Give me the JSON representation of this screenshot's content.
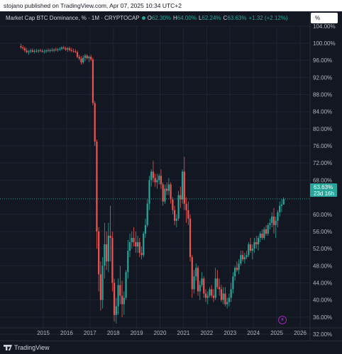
{
  "publisher": "stojano published on TradingView.com, Apr 07, 2025 10:34 UTC+2",
  "symbol": "Market Cap BTC Dominance, % · 1M · CRYPTOCAP",
  "ohlc": {
    "o_label": "O",
    "o": "62.30%",
    "h_label": "H",
    "h": "64.00%",
    "l_label": "L",
    "l": "62.24%",
    "c_label": "C",
    "c": "63.63%",
    "chg": "+1.32 (+2.12%)"
  },
  "scale_button": "%",
  "price_tag": {
    "value": "63.63%",
    "countdown": "23d 16h"
  },
  "footer_logo": "TradingView",
  "colors": {
    "background": "#131722",
    "up": "#26a69a",
    "down": "#ef5350",
    "grid": "#1f2433"
  },
  "icons": {
    "flash": "lightning-icon",
    "logo": "tradingview-logo-icon"
  },
  "chart_data": {
    "type": "candlestick",
    "title": "Market Cap BTC Dominance, %",
    "interval": "1M",
    "ylabel": "",
    "xlabel": "",
    "ylim": [
      30,
      105
    ],
    "y_ticks": [
      "104.00%",
      "100.00%",
      "96.00%",
      "92.00%",
      "88.00%",
      "84.00%",
      "80.00%",
      "76.00%",
      "72.00%",
      "68.00%",
      "60.00%",
      "56.00%",
      "52.00%",
      "48.00%",
      "44.00%",
      "40.00%",
      "36.00%",
      "32.00%"
    ],
    "x_ticks": [
      "2015",
      "2016",
      "2017",
      "2018",
      "2019",
      "2020",
      "2021",
      "2022",
      "2023",
      "2024",
      "2025",
      "2026"
    ],
    "xlim": [
      2014.0,
      2026.6
    ],
    "last_price": 63.63,
    "grid": true,
    "candles": [
      {
        "t": "2014-01",
        "o": 99.3,
        "h": 99.9,
        "l": 98.7,
        "c": 99.0
      },
      {
        "t": "2014-02",
        "o": 99.0,
        "h": 99.5,
        "l": 98.4,
        "c": 98.8
      },
      {
        "t": "2014-03",
        "o": 98.8,
        "h": 99.2,
        "l": 97.9,
        "c": 98.3
      },
      {
        "t": "2014-04",
        "o": 98.3,
        "h": 98.9,
        "l": 97.6,
        "c": 97.9
      },
      {
        "t": "2014-05",
        "o": 97.9,
        "h": 98.4,
        "l": 97.3,
        "c": 98.1
      },
      {
        "t": "2014-06",
        "o": 98.1,
        "h": 98.7,
        "l": 97.7,
        "c": 98.3
      },
      {
        "t": "2014-07",
        "o": 98.3,
        "h": 98.8,
        "l": 97.8,
        "c": 98.0
      },
      {
        "t": "2014-08",
        "o": 98.0,
        "h": 98.6,
        "l": 97.6,
        "c": 98.2
      },
      {
        "t": "2014-09",
        "o": 98.2,
        "h": 98.7,
        "l": 97.8,
        "c": 98.1
      },
      {
        "t": "2014-10",
        "o": 98.1,
        "h": 98.6,
        "l": 97.7,
        "c": 98.3
      },
      {
        "t": "2014-11",
        "o": 98.3,
        "h": 98.7,
        "l": 97.9,
        "c": 98.2
      },
      {
        "t": "2014-12",
        "o": 98.2,
        "h": 98.6,
        "l": 97.8,
        "c": 98.0
      },
      {
        "t": "2015-01",
        "o": 98.0,
        "h": 98.5,
        "l": 97.6,
        "c": 98.1
      },
      {
        "t": "2015-02",
        "o": 98.1,
        "h": 98.6,
        "l": 97.7,
        "c": 98.3
      },
      {
        "t": "2015-03",
        "o": 98.3,
        "h": 98.8,
        "l": 97.9,
        "c": 98.2
      },
      {
        "t": "2015-04",
        "o": 98.2,
        "h": 98.7,
        "l": 97.8,
        "c": 98.4
      },
      {
        "t": "2015-05",
        "o": 98.4,
        "h": 98.9,
        "l": 98.0,
        "c": 98.3
      },
      {
        "t": "2015-06",
        "o": 98.3,
        "h": 98.8,
        "l": 97.9,
        "c": 98.5
      },
      {
        "t": "2015-07",
        "o": 98.5,
        "h": 99.0,
        "l": 98.1,
        "c": 98.4
      },
      {
        "t": "2015-08",
        "o": 98.4,
        "h": 98.9,
        "l": 98.0,
        "c": 98.6
      },
      {
        "t": "2015-09",
        "o": 98.6,
        "h": 99.1,
        "l": 98.2,
        "c": 98.7
      },
      {
        "t": "2015-10",
        "o": 98.7,
        "h": 99.3,
        "l": 98.3,
        "c": 99.0
      },
      {
        "t": "2015-11",
        "o": 99.0,
        "h": 99.4,
        "l": 98.5,
        "c": 98.8
      },
      {
        "t": "2015-12",
        "o": 98.8,
        "h": 99.2,
        "l": 98.2,
        "c": 98.5
      },
      {
        "t": "2016-01",
        "o": 98.5,
        "h": 99.1,
        "l": 98.0,
        "c": 98.8
      },
      {
        "t": "2016-02",
        "o": 98.8,
        "h": 99.2,
        "l": 98.1,
        "c": 98.4
      },
      {
        "t": "2016-03",
        "o": 98.4,
        "h": 98.9,
        "l": 97.9,
        "c": 98.2
      },
      {
        "t": "2016-04",
        "o": 98.2,
        "h": 98.7,
        "l": 97.8,
        "c": 98.1
      },
      {
        "t": "2016-05",
        "o": 98.1,
        "h": 98.6,
        "l": 97.7,
        "c": 97.9
      },
      {
        "t": "2016-06",
        "o": 97.9,
        "h": 98.3,
        "l": 96.5,
        "c": 96.8
      },
      {
        "t": "2016-07",
        "o": 96.8,
        "h": 97.3,
        "l": 96.0,
        "c": 96.4
      },
      {
        "t": "2016-08",
        "o": 96.4,
        "h": 97.0,
        "l": 95.0,
        "c": 95.5
      },
      {
        "t": "2016-09",
        "o": 95.5,
        "h": 97.2,
        "l": 95.1,
        "c": 96.6
      },
      {
        "t": "2016-10",
        "o": 96.6,
        "h": 97.5,
        "l": 95.8,
        "c": 97.1
      },
      {
        "t": "2016-11",
        "o": 97.1,
        "h": 97.4,
        "l": 96.2,
        "c": 96.5
      },
      {
        "t": "2016-12",
        "o": 96.5,
        "h": 97.1,
        "l": 95.6,
        "c": 96.8
      },
      {
        "t": "2017-01",
        "o": 96.8,
        "h": 97.3,
        "l": 95.8,
        "c": 96.2
      },
      {
        "t": "2017-02",
        "o": 96.2,
        "h": 96.6,
        "l": 85.5,
        "c": 86.0
      },
      {
        "t": "2017-03",
        "o": 86.0,
        "h": 86.5,
        "l": 76.0,
        "c": 77.0
      },
      {
        "t": "2017-04",
        "o": 77.0,
        "h": 77.5,
        "l": 52.0,
        "c": 56.0
      },
      {
        "t": "2017-05",
        "o": 56.0,
        "h": 57.0,
        "l": 42.0,
        "c": 46.0
      },
      {
        "t": "2017-06",
        "o": 46.0,
        "h": 49.0,
        "l": 37.5,
        "c": 40.0
      },
      {
        "t": "2017-07",
        "o": 40.0,
        "h": 50.0,
        "l": 38.0,
        "c": 48.0
      },
      {
        "t": "2017-08",
        "o": 48.0,
        "h": 58.0,
        "l": 45.0,
        "c": 53.0
      },
      {
        "t": "2017-09",
        "o": 53.0,
        "h": 56.0,
        "l": 47.0,
        "c": 49.0
      },
      {
        "t": "2017-10",
        "o": 49.0,
        "h": 58.0,
        "l": 46.5,
        "c": 55.0
      },
      {
        "t": "2017-11",
        "o": 55.0,
        "h": 62.0,
        "l": 49.0,
        "c": 54.5
      },
      {
        "t": "2017-12",
        "o": 54.5,
        "h": 56.0,
        "l": 42.0,
        "c": 44.0
      },
      {
        "t": "2018-01",
        "o": 44.0,
        "h": 45.0,
        "l": 35.0,
        "c": 36.5
      },
      {
        "t": "2018-02",
        "o": 36.5,
        "h": 40.5,
        "l": 34.5,
        "c": 38.5
      },
      {
        "t": "2018-03",
        "o": 38.5,
        "h": 45.0,
        "l": 36.5,
        "c": 43.5
      },
      {
        "t": "2018-04",
        "o": 43.5,
        "h": 48.0,
        "l": 39.0,
        "c": 41.0
      },
      {
        "t": "2018-05",
        "o": 41.0,
        "h": 44.5,
        "l": 36.0,
        "c": 39.0
      },
      {
        "t": "2018-06",
        "o": 39.0,
        "h": 42.0,
        "l": 36.5,
        "c": 40.5
      },
      {
        "t": "2018-07",
        "o": 40.5,
        "h": 47.0,
        "l": 40.0,
        "c": 46.5
      },
      {
        "t": "2018-08",
        "o": 46.5,
        "h": 54.0,
        "l": 45.0,
        "c": 51.5
      },
      {
        "t": "2018-09",
        "o": 51.5,
        "h": 55.5,
        "l": 50.0,
        "c": 53.5
      },
      {
        "t": "2018-10",
        "o": 53.5,
        "h": 56.0,
        "l": 52.0,
        "c": 54.5
      },
      {
        "t": "2018-11",
        "o": 54.5,
        "h": 57.0,
        "l": 52.5,
        "c": 53.5
      },
      {
        "t": "2018-12",
        "o": 53.5,
        "h": 56.0,
        "l": 51.0,
        "c": 52.5
      },
      {
        "t": "2019-01",
        "o": 52.5,
        "h": 55.0,
        "l": 51.0,
        "c": 53.5
      },
      {
        "t": "2019-02",
        "o": 53.5,
        "h": 54.5,
        "l": 50.0,
        "c": 51.0
      },
      {
        "t": "2019-03",
        "o": 51.0,
        "h": 52.5,
        "l": 49.5,
        "c": 50.5
      },
      {
        "t": "2019-04",
        "o": 50.5,
        "h": 56.0,
        "l": 50.0,
        "c": 55.5
      },
      {
        "t": "2019-05",
        "o": 55.5,
        "h": 59.0,
        "l": 54.5,
        "c": 57.5
      },
      {
        "t": "2019-06",
        "o": 57.5,
        "h": 63.5,
        "l": 57.0,
        "c": 62.5
      },
      {
        "t": "2019-07",
        "o": 62.5,
        "h": 69.0,
        "l": 61.0,
        "c": 68.0
      },
      {
        "t": "2019-08",
        "o": 68.0,
        "h": 70.5,
        "l": 66.5,
        "c": 70.0
      },
      {
        "t": "2019-09",
        "o": 70.0,
        "h": 72.5,
        "l": 67.5,
        "c": 68.5
      },
      {
        "t": "2019-10",
        "o": 68.5,
        "h": 69.5,
        "l": 66.5,
        "c": 67.5
      },
      {
        "t": "2019-11",
        "o": 67.5,
        "h": 69.5,
        "l": 66.0,
        "c": 68.0
      },
      {
        "t": "2019-12",
        "o": 68.0,
        "h": 69.5,
        "l": 67.0,
        "c": 69.0
      },
      {
        "t": "2020-01",
        "o": 69.0,
        "h": 70.5,
        "l": 66.0,
        "c": 67.0
      },
      {
        "t": "2020-02",
        "o": 67.0,
        "h": 67.5,
        "l": 62.0,
        "c": 63.0
      },
      {
        "t": "2020-03",
        "o": 63.0,
        "h": 67.0,
        "l": 62.5,
        "c": 66.0
      },
      {
        "t": "2020-04",
        "o": 66.0,
        "h": 67.5,
        "l": 64.5,
        "c": 65.5
      },
      {
        "t": "2020-05",
        "o": 65.5,
        "h": 68.5,
        "l": 64.5,
        "c": 67.0
      },
      {
        "t": "2020-06",
        "o": 67.0,
        "h": 67.5,
        "l": 62.5,
        "c": 63.5
      },
      {
        "t": "2020-07",
        "o": 63.5,
        "h": 64.0,
        "l": 60.0,
        "c": 61.0
      },
      {
        "t": "2020-08",
        "o": 61.0,
        "h": 62.0,
        "l": 57.5,
        "c": 58.5
      },
      {
        "t": "2020-09",
        "o": 58.5,
        "h": 60.0,
        "l": 57.0,
        "c": 59.0
      },
      {
        "t": "2020-10",
        "o": 59.0,
        "h": 65.5,
        "l": 58.5,
        "c": 64.5
      },
      {
        "t": "2020-11",
        "o": 64.5,
        "h": 66.5,
        "l": 61.5,
        "c": 63.5
      },
      {
        "t": "2020-12",
        "o": 63.5,
        "h": 70.5,
        "l": 62.5,
        "c": 70.0
      },
      {
        "t": "2021-01",
        "o": 70.0,
        "h": 73.5,
        "l": 61.0,
        "c": 62.5
      },
      {
        "t": "2021-02",
        "o": 62.5,
        "h": 64.0,
        "l": 58.0,
        "c": 61.0
      },
      {
        "t": "2021-03",
        "o": 61.0,
        "h": 63.0,
        "l": 57.5,
        "c": 59.0
      },
      {
        "t": "2021-04",
        "o": 59.0,
        "h": 60.0,
        "l": 49.0,
        "c": 50.0
      },
      {
        "t": "2021-05",
        "o": 50.0,
        "h": 50.5,
        "l": 40.5,
        "c": 42.5
      },
      {
        "t": "2021-06",
        "o": 42.5,
        "h": 47.0,
        "l": 41.5,
        "c": 45.5
      },
      {
        "t": "2021-07",
        "o": 45.5,
        "h": 48.5,
        "l": 44.5,
        "c": 47.5
      },
      {
        "t": "2021-08",
        "o": 47.5,
        "h": 48.0,
        "l": 41.0,
        "c": 42.0
      },
      {
        "t": "2021-09",
        "o": 42.0,
        "h": 44.5,
        "l": 40.0,
        "c": 43.5
      },
      {
        "t": "2021-10",
        "o": 43.5,
        "h": 46.5,
        "l": 43.0,
        "c": 45.0
      },
      {
        "t": "2021-11",
        "o": 45.0,
        "h": 45.5,
        "l": 40.5,
        "c": 41.5
      },
      {
        "t": "2021-12",
        "o": 41.5,
        "h": 42.5,
        "l": 39.5,
        "c": 40.5
      },
      {
        "t": "2022-01",
        "o": 40.5,
        "h": 42.0,
        "l": 39.0,
        "c": 41.0
      },
      {
        "t": "2022-02",
        "o": 41.0,
        "h": 43.0,
        "l": 40.5,
        "c": 42.5
      },
      {
        "t": "2022-03",
        "o": 42.5,
        "h": 43.5,
        "l": 40.5,
        "c": 41.0
      },
      {
        "t": "2022-04",
        "o": 41.0,
        "h": 42.5,
        "l": 39.5,
        "c": 40.5
      },
      {
        "t": "2022-05",
        "o": 40.5,
        "h": 47.5,
        "l": 40.0,
        "c": 45.0
      },
      {
        "t": "2022-06",
        "o": 45.0,
        "h": 47.0,
        "l": 42.5,
        "c": 43.0
      },
      {
        "t": "2022-07",
        "o": 43.0,
        "h": 45.0,
        "l": 41.0,
        "c": 42.5
      },
      {
        "t": "2022-08",
        "o": 42.5,
        "h": 43.5,
        "l": 39.5,
        "c": 40.0
      },
      {
        "t": "2022-09",
        "o": 40.0,
        "h": 43.0,
        "l": 39.0,
        "c": 41.5
      },
      {
        "t": "2022-10",
        "o": 41.5,
        "h": 43.0,
        "l": 38.5,
        "c": 39.0
      },
      {
        "t": "2022-11",
        "o": 39.0,
        "h": 40.5,
        "l": 38.0,
        "c": 39.5
      },
      {
        "t": "2022-12",
        "o": 39.5,
        "h": 41.5,
        "l": 38.5,
        "c": 40.5
      },
      {
        "t": "2023-01",
        "o": 40.5,
        "h": 44.0,
        "l": 39.5,
        "c": 42.5
      },
      {
        "t": "2023-02",
        "o": 42.5,
        "h": 46.5,
        "l": 41.5,
        "c": 45.5
      },
      {
        "t": "2023-03",
        "o": 45.5,
        "h": 48.0,
        "l": 44.5,
        "c": 47.5
      },
      {
        "t": "2023-04",
        "o": 47.5,
        "h": 49.0,
        "l": 46.5,
        "c": 47.0
      },
      {
        "t": "2023-05",
        "o": 47.0,
        "h": 49.5,
        "l": 46.0,
        "c": 48.5
      },
      {
        "t": "2023-06",
        "o": 48.5,
        "h": 51.5,
        "l": 48.0,
        "c": 50.5
      },
      {
        "t": "2023-07",
        "o": 50.5,
        "h": 51.5,
        "l": 49.0,
        "c": 49.5
      },
      {
        "t": "2023-08",
        "o": 49.5,
        "h": 51.0,
        "l": 48.5,
        "c": 50.0
      },
      {
        "t": "2023-09",
        "o": 50.0,
        "h": 51.5,
        "l": 49.5,
        "c": 50.5
      },
      {
        "t": "2023-10",
        "o": 50.5,
        "h": 53.5,
        "l": 50.0,
        "c": 53.0
      },
      {
        "t": "2023-11",
        "o": 53.0,
        "h": 54.5,
        "l": 51.0,
        "c": 51.5
      },
      {
        "t": "2023-12",
        "o": 51.5,
        "h": 53.0,
        "l": 49.5,
        "c": 52.0
      },
      {
        "t": "2024-01",
        "o": 52.0,
        "h": 54.5,
        "l": 51.0,
        "c": 53.5
      },
      {
        "t": "2024-02",
        "o": 53.5,
        "h": 55.0,
        "l": 52.0,
        "c": 53.0
      },
      {
        "t": "2024-03",
        "o": 53.0,
        "h": 55.0,
        "l": 51.5,
        "c": 54.5
      },
      {
        "t": "2024-04",
        "o": 54.5,
        "h": 56.0,
        "l": 53.5,
        "c": 55.5
      },
      {
        "t": "2024-05",
        "o": 55.5,
        "h": 56.5,
        "l": 54.0,
        "c": 54.5
      },
      {
        "t": "2024-06",
        "o": 54.5,
        "h": 57.0,
        "l": 54.0,
        "c": 56.5
      },
      {
        "t": "2024-07",
        "o": 56.5,
        "h": 57.5,
        "l": 55.0,
        "c": 55.5
      },
      {
        "t": "2024-08",
        "o": 55.5,
        "h": 58.0,
        "l": 55.0,
        "c": 57.5
      },
      {
        "t": "2024-09",
        "o": 57.5,
        "h": 59.0,
        "l": 56.5,
        "c": 58.0
      },
      {
        "t": "2024-10",
        "o": 58.0,
        "h": 60.5,
        "l": 57.0,
        "c": 59.5
      },
      {
        "t": "2024-11",
        "o": 59.5,
        "h": 61.5,
        "l": 55.5,
        "c": 57.5
      },
      {
        "t": "2024-12",
        "o": 57.5,
        "h": 59.5,
        "l": 54.5,
        "c": 58.5
      },
      {
        "t": "2025-01",
        "o": 58.5,
        "h": 61.0,
        "l": 57.0,
        "c": 60.5
      },
      {
        "t": "2025-02",
        "o": 60.5,
        "h": 63.0,
        "l": 59.5,
        "c": 62.0
      },
      {
        "t": "2025-03",
        "o": 62.0,
        "h": 63.5,
        "l": 60.5,
        "c": 62.3
      },
      {
        "t": "2025-04",
        "o": 62.3,
        "h": 64.0,
        "l": 62.24,
        "c": 63.63
      }
    ]
  }
}
